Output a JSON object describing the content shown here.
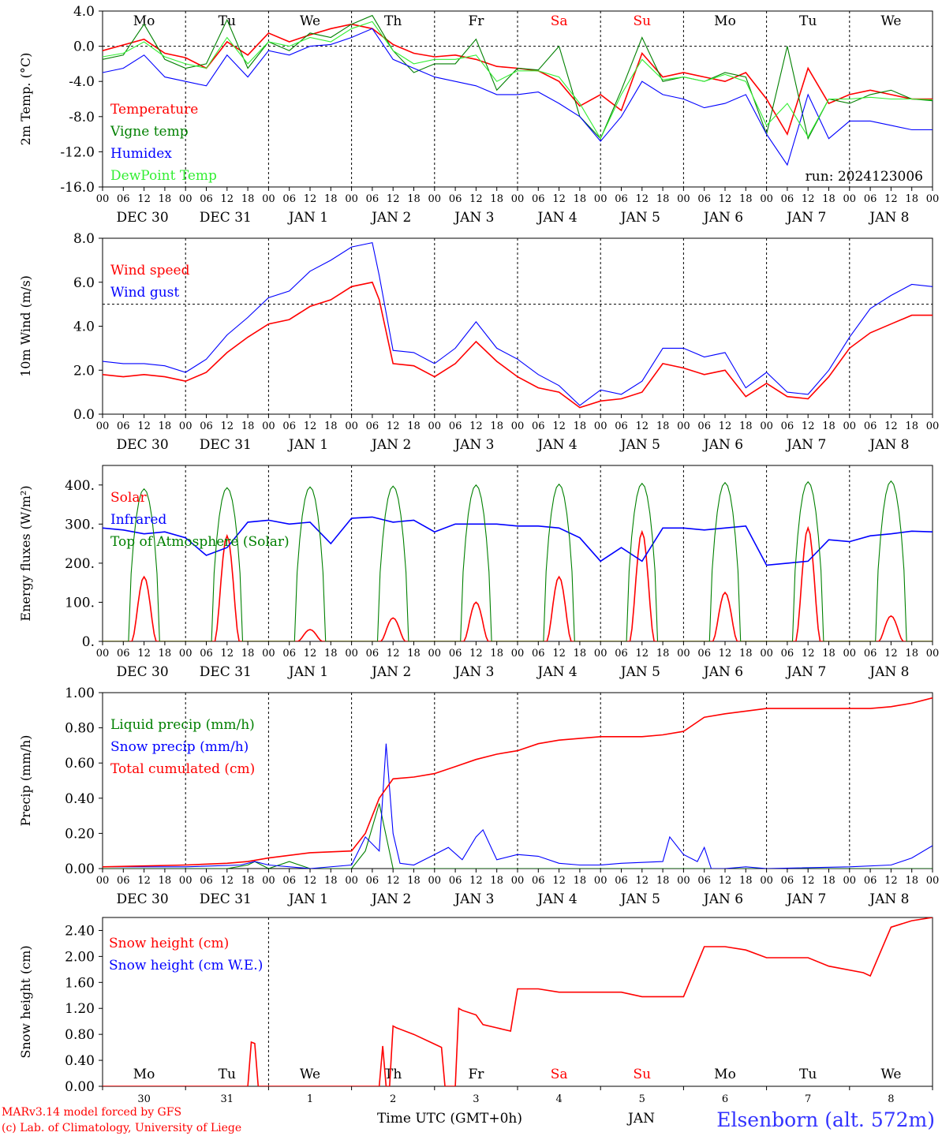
{
  "footer": {
    "model": "MARv3.14 model forced by GFS",
    "lab": "(c) Lab. of Climatology, University of Liege",
    "xlabel": "Time UTC (GMT+0h)",
    "month": "JAN",
    "station": "Elsenborn (alt. 572m)"
  },
  "run_label": "run: 2024123006",
  "hour_ticks": [
    "00",
    "06",
    "12",
    "18"
  ],
  "date_labels": [
    "DEC 30",
    "DEC 31",
    "JAN  1",
    "JAN  2",
    "JAN  3",
    "JAN  4",
    "JAN  5",
    "JAN  6",
    "JAN  7",
    "JAN  8"
  ],
  "weekdays": [
    "Mo",
    "Tu",
    "We",
    "Th",
    "Fr",
    "Sa",
    "Su",
    "Mo",
    "Tu",
    "We"
  ],
  "weekday_colors": [
    "#000000",
    "#000000",
    "#000000",
    "#000000",
    "#000000",
    "#ff0000",
    "#ff0000",
    "#000000",
    "#000000",
    "#000000"
  ],
  "day_numbers": [
    "30",
    "31",
    "1",
    "2",
    "3",
    "4",
    "5",
    "6",
    "7",
    "8"
  ],
  "colors": {
    "red": "#ff0000",
    "green": "#008000",
    "blue": "#0000ff",
    "lightgreen": "#33ee33"
  },
  "chart_data": [
    {
      "id": "temperature",
      "type": "line",
      "ylabel": "2m Temp. (°C)",
      "ylim": [
        -16,
        4
      ],
      "yticks": [
        "4.0",
        "0.0",
        "-4.0",
        "-8.0",
        "-12.0",
        "-16.0"
      ],
      "ytick_values": [
        4,
        0,
        -4,
        -8,
        -12,
        -16
      ],
      "dashed_line": 0,
      "show_weekdays": true,
      "show_run": true,
      "x_hours_start": 0,
      "x_hours_end": 240,
      "series": [
        {
          "name": "Temperature",
          "color": "red",
          "x": [
            0,
            12,
            18,
            24,
            30,
            36,
            42,
            48,
            54,
            60,
            66,
            72,
            78,
            84,
            90,
            96,
            102,
            108,
            114,
            120,
            126,
            132,
            138,
            144,
            150,
            156,
            162,
            168,
            174,
            180,
            186,
            192,
            198,
            204,
            210,
            216,
            222,
            228,
            234,
            240
          ],
          "values": [
            -0.5,
            0.8,
            -0.8,
            -1.3,
            -2.5,
            0.5,
            -1.0,
            1.5,
            0.5,
            1.3,
            2.0,
            2.5,
            2.0,
            0.2,
            -0.8,
            -1.2,
            -1.0,
            -1.5,
            -2.3,
            -2.5,
            -2.8,
            -4.0,
            -6.8,
            -5.5,
            -7.3,
            -0.8,
            -3.5,
            -3.0,
            -3.5,
            -4.0,
            -3.0,
            -6.0,
            -10.0,
            -2.5,
            -6.5,
            -5.5,
            -5.0,
            -5.5,
            -6.0,
            -6.0
          ]
        },
        {
          "name": "Vigne temp",
          "color": "green",
          "x": [
            0,
            6,
            12,
            18,
            24,
            30,
            36,
            42,
            48,
            54,
            60,
            66,
            72,
            78,
            84,
            90,
            96,
            102,
            108,
            114,
            120,
            126,
            132,
            138,
            144,
            150,
            156,
            162,
            168,
            174,
            180,
            186,
            192,
            198,
            204,
            210,
            216,
            222,
            228,
            234,
            240
          ],
          "values": [
            -1.5,
            -1.0,
            2.5,
            -1.5,
            -2.5,
            -2.0,
            3.0,
            -2.5,
            0.5,
            -0.5,
            1.5,
            1.0,
            2.5,
            3.5,
            -0.5,
            -3.0,
            -2.0,
            -2.0,
            0.8,
            -5.0,
            -2.5,
            -2.7,
            0.0,
            -8.0,
            -10.5,
            -5.0,
            1.0,
            -4.0,
            -3.5,
            -4.0,
            -3.0,
            -3.5,
            -10.0,
            0.0,
            -10.5,
            -6.0,
            -6.5,
            -5.5,
            -5.0,
            -6.0,
            -6.2
          ]
        },
        {
          "name": "Humidex",
          "color": "blue",
          "x": [
            0,
            6,
            12,
            18,
            24,
            30,
            36,
            42,
            48,
            54,
            60,
            66,
            72,
            78,
            84,
            90,
            96,
            102,
            108,
            114,
            120,
            126,
            132,
            138,
            144,
            150,
            156,
            162,
            168,
            174,
            180,
            186,
            192,
            198,
            204,
            210,
            216,
            222,
            228,
            234,
            240
          ],
          "values": [
            -3.0,
            -2.5,
            -1.0,
            -3.5,
            -4.0,
            -4.5,
            -1.0,
            -3.5,
            -0.5,
            -1.0,
            0.0,
            0.2,
            1.0,
            2.0,
            -1.5,
            -2.5,
            -3.5,
            -4.0,
            -4.5,
            -5.5,
            -5.5,
            -5.2,
            -6.5,
            -8.0,
            -10.8,
            -8.0,
            -4.0,
            -5.5,
            -6.0,
            -7.0,
            -6.5,
            -5.5,
            -10.0,
            -13.5,
            -5.5,
            -10.5,
            -8.5,
            -8.5,
            -9.0,
            -9.5,
            -9.5
          ]
        },
        {
          "name": "DewPoint Temp",
          "color": "lightgreen",
          "x": [
            0,
            6,
            12,
            18,
            24,
            30,
            36,
            42,
            48,
            54,
            60,
            66,
            72,
            78,
            84,
            90,
            96,
            102,
            108,
            114,
            120,
            126,
            132,
            138,
            144,
            150,
            156,
            162,
            168,
            174,
            180,
            186,
            192,
            198,
            204,
            210,
            216,
            222,
            228,
            234,
            240
          ],
          "values": [
            -1.2,
            -0.8,
            0.5,
            -1.2,
            -2.0,
            -2.5,
            1.0,
            -2.0,
            0.5,
            0.0,
            1.0,
            0.5,
            2.0,
            2.8,
            -0.5,
            -2.0,
            -1.5,
            -1.5,
            -1.0,
            -4.0,
            -2.8,
            -2.8,
            -3.5,
            -6.5,
            -10.5,
            -5.5,
            -1.5,
            -3.8,
            -3.5,
            -4.0,
            -3.2,
            -4.0,
            -9.0,
            -6.5,
            -10.3,
            -6.0,
            -6.0,
            -5.8,
            -6.0,
            -6.0,
            -6.1
          ]
        }
      ]
    },
    {
      "id": "wind",
      "type": "line",
      "ylabel": "10m Wind (m/s)",
      "ylim": [
        0,
        8
      ],
      "yticks": [
        "8.0",
        "6.0",
        "4.0",
        "2.0",
        "0.0"
      ],
      "ytick_values": [
        8,
        6,
        4,
        2,
        0
      ],
      "dashed_line": 5,
      "x_hours_start": 0,
      "x_hours_end": 240,
      "series": [
        {
          "name": "Wind speed",
          "color": "red",
          "x": [
            0,
            6,
            12,
            18,
            24,
            30,
            36,
            42,
            48,
            54,
            60,
            66,
            72,
            78,
            80,
            84,
            90,
            96,
            102,
            108,
            114,
            120,
            126,
            132,
            138,
            144,
            150,
            156,
            162,
            168,
            174,
            180,
            186,
            192,
            198,
            204,
            210,
            216,
            222,
            228,
            234,
            240
          ],
          "values": [
            1.8,
            1.7,
            1.8,
            1.7,
            1.5,
            1.9,
            2.8,
            3.5,
            4.1,
            4.3,
            4.9,
            5.2,
            5.8,
            6.0,
            5.2,
            2.3,
            2.2,
            1.7,
            2.3,
            3.3,
            2.4,
            1.7,
            1.2,
            1.0,
            0.3,
            0.6,
            0.7,
            1.0,
            2.3,
            2.1,
            1.8,
            2.0,
            0.8,
            1.4,
            0.8,
            0.7,
            1.7,
            3.0,
            3.7,
            4.1,
            4.5,
            4.5
          ]
        },
        {
          "name": "Wind gust",
          "color": "blue",
          "x": [
            0,
            6,
            12,
            18,
            24,
            30,
            36,
            42,
            48,
            54,
            60,
            66,
            72,
            78,
            80,
            84,
            90,
            96,
            102,
            108,
            114,
            120,
            126,
            132,
            138,
            144,
            150,
            156,
            162,
            168,
            174,
            180,
            186,
            192,
            198,
            204,
            210,
            216,
            222,
            228,
            234,
            240
          ],
          "values": [
            2.4,
            2.3,
            2.3,
            2.2,
            1.9,
            2.5,
            3.6,
            4.4,
            5.3,
            5.6,
            6.5,
            7.0,
            7.6,
            7.8,
            6.3,
            2.9,
            2.8,
            2.3,
            3.0,
            4.2,
            3.0,
            2.5,
            1.8,
            1.3,
            0.4,
            1.1,
            0.9,
            1.5,
            3.0,
            3.0,
            2.6,
            2.8,
            1.2,
            1.9,
            1.0,
            0.9,
            2.0,
            3.5,
            4.8,
            5.4,
            5.9,
            5.8
          ]
        }
      ]
    },
    {
      "id": "energy",
      "type": "line",
      "ylabel": "Energy fluxes (W/m²)",
      "ylim": [
        0,
        450
      ],
      "yticks": [
        "400.",
        "300.",
        "200.",
        "100.",
        "0."
      ],
      "ytick_values": [
        400,
        300,
        200,
        100,
        0
      ],
      "x_hours_start": 0,
      "x_hours_end": 240,
      "series": [
        {
          "name": "Solar",
          "color": "red",
          "x": [],
          "values": [],
          "peaks": [
            165,
            270,
            30,
            60,
            100,
            165,
            280,
            125,
            290,
            65
          ]
        },
        {
          "name": "Infrared",
          "color": "blue",
          "x": [
            0,
            6,
            12,
            18,
            24,
            30,
            36,
            42,
            48,
            54,
            60,
            66,
            72,
            78,
            84,
            90,
            96,
            102,
            108,
            114,
            120,
            126,
            132,
            138,
            144,
            150,
            156,
            162,
            168,
            174,
            180,
            186,
            192,
            198,
            204,
            210,
            216,
            222,
            228,
            234,
            240
          ],
          "values": [
            290,
            285,
            275,
            280,
            265,
            220,
            240,
            305,
            310,
            300,
            305,
            250,
            315,
            318,
            305,
            310,
            280,
            300,
            300,
            300,
            295,
            295,
            290,
            265,
            205,
            240,
            205,
            290,
            290,
            285,
            290,
            295,
            195,
            200,
            205,
            260,
            255,
            270,
            275,
            282,
            280
          ]
        },
        {
          "name": "Top of Atmosphere (Solar)",
          "color": "green",
          "x": [],
          "values": [],
          "peaks": [
            390,
            393,
            395,
            397,
            400,
            402,
            404,
            406,
            408,
            410
          ]
        }
      ]
    },
    {
      "id": "precip",
      "type": "line",
      "ylabel": "Precip (mm/h)",
      "ylim": [
        0,
        1
      ],
      "yticks": [
        "1.00",
        "0.80",
        "0.60",
        "0.40",
        "0.20",
        "0.00"
      ],
      "ytick_values": [
        1,
        0.8,
        0.6,
        0.4,
        0.2,
        0
      ],
      "x_hours_start": 0,
      "x_hours_end": 240,
      "series": [
        {
          "name": "Liquid precip (mm/h)",
          "color": "green",
          "x": [
            0,
            30,
            36,
            42,
            44,
            48,
            54,
            60,
            66,
            72,
            76,
            80,
            84,
            90,
            240
          ],
          "values": [
            0,
            0,
            0,
            0.02,
            0.04,
            0,
            0.04,
            0,
            0,
            0,
            0.1,
            0.37,
            0,
            0,
            0
          ]
        },
        {
          "name": "Snow precip (mm/h)",
          "color": "blue",
          "x": [
            0,
            24,
            40,
            44,
            48,
            60,
            72,
            76,
            80,
            82,
            84,
            86,
            90,
            96,
            100,
            104,
            108,
            110,
            114,
            120,
            126,
            132,
            138,
            144,
            150,
            162,
            164,
            168,
            172,
            174,
            176,
            180,
            186,
            192,
            216,
            228,
            234,
            240
          ],
          "values": [
            0.01,
            0.01,
            0.02,
            0.04,
            0.02,
            0.0,
            0.02,
            0.18,
            0.1,
            0.71,
            0.2,
            0.03,
            0.02,
            0.08,
            0.12,
            0.05,
            0.18,
            0.22,
            0.05,
            0.08,
            0.07,
            0.03,
            0.02,
            0.02,
            0.03,
            0.04,
            0.18,
            0.08,
            0.04,
            0.12,
            0.0,
            0.0,
            0.01,
            0.0,
            0.01,
            0.02,
            0.06,
            0.13
          ]
        },
        {
          "name": "Total cumulated (cm)",
          "color": "red",
          "x": [
            0,
            24,
            36,
            42,
            48,
            60,
            72,
            76,
            78,
            80,
            84,
            90,
            96,
            102,
            108,
            114,
            120,
            126,
            132,
            144,
            150,
            156,
            162,
            168,
            174,
            180,
            192,
            204,
            216,
            222,
            228,
            234,
            240
          ],
          "values": [
            0.01,
            0.02,
            0.03,
            0.04,
            0.06,
            0.09,
            0.1,
            0.2,
            0.3,
            0.4,
            0.51,
            0.52,
            0.54,
            0.58,
            0.62,
            0.65,
            0.67,
            0.71,
            0.73,
            0.75,
            0.75,
            0.75,
            0.76,
            0.78,
            0.86,
            0.88,
            0.91,
            0.91,
            0.91,
            0.91,
            0.92,
            0.94,
            0.97
          ]
        }
      ]
    },
    {
      "id": "snow",
      "type": "line",
      "ylabel": "Snow height (cm)",
      "ylim": [
        0,
        2.6
      ],
      "yticks": [
        "2.40",
        "2.00",
        "1.60",
        "1.20",
        "0.80",
        "0.40",
        "0.00"
      ],
      "ytick_values": [
        2.4,
        2.0,
        1.6,
        1.2,
        0.8,
        0.4,
        0.0
      ],
      "show_weekdays_bottom": true,
      "x_hours_start": 0,
      "x_hours_end": 240,
      "series": [
        {
          "name": "Snow height (cm)",
          "color": "red",
          "x": [
            0,
            42,
            43,
            44,
            45,
            80,
            81,
            82,
            83,
            84,
            85,
            90,
            96,
            98,
            99,
            102,
            103,
            104,
            108,
            110,
            114,
            118,
            120,
            126,
            132,
            144,
            150,
            156,
            162,
            168,
            174,
            180,
            186,
            192,
            198,
            204,
            210,
            220,
            222,
            228,
            234,
            240
          ],
          "values": [
            0,
            0,
            0.68,
            0.66,
            0,
            0,
            0.62,
            0,
            0,
            0.93,
            0.9,
            0.8,
            0.65,
            0.6,
            0,
            0,
            1.2,
            1.17,
            1.1,
            0.95,
            0.9,
            0.85,
            1.5,
            1.5,
            1.45,
            1.45,
            1.45,
            1.38,
            1.38,
            1.38,
            2.15,
            2.15,
            2.1,
            1.98,
            1.98,
            1.98,
            1.85,
            1.75,
            1.7,
            2.45,
            2.55,
            2.6
          ]
        },
        {
          "name": "Snow height (cm W.E.)",
          "color": "blue",
          "x": [],
          "values": []
        }
      ]
    }
  ]
}
